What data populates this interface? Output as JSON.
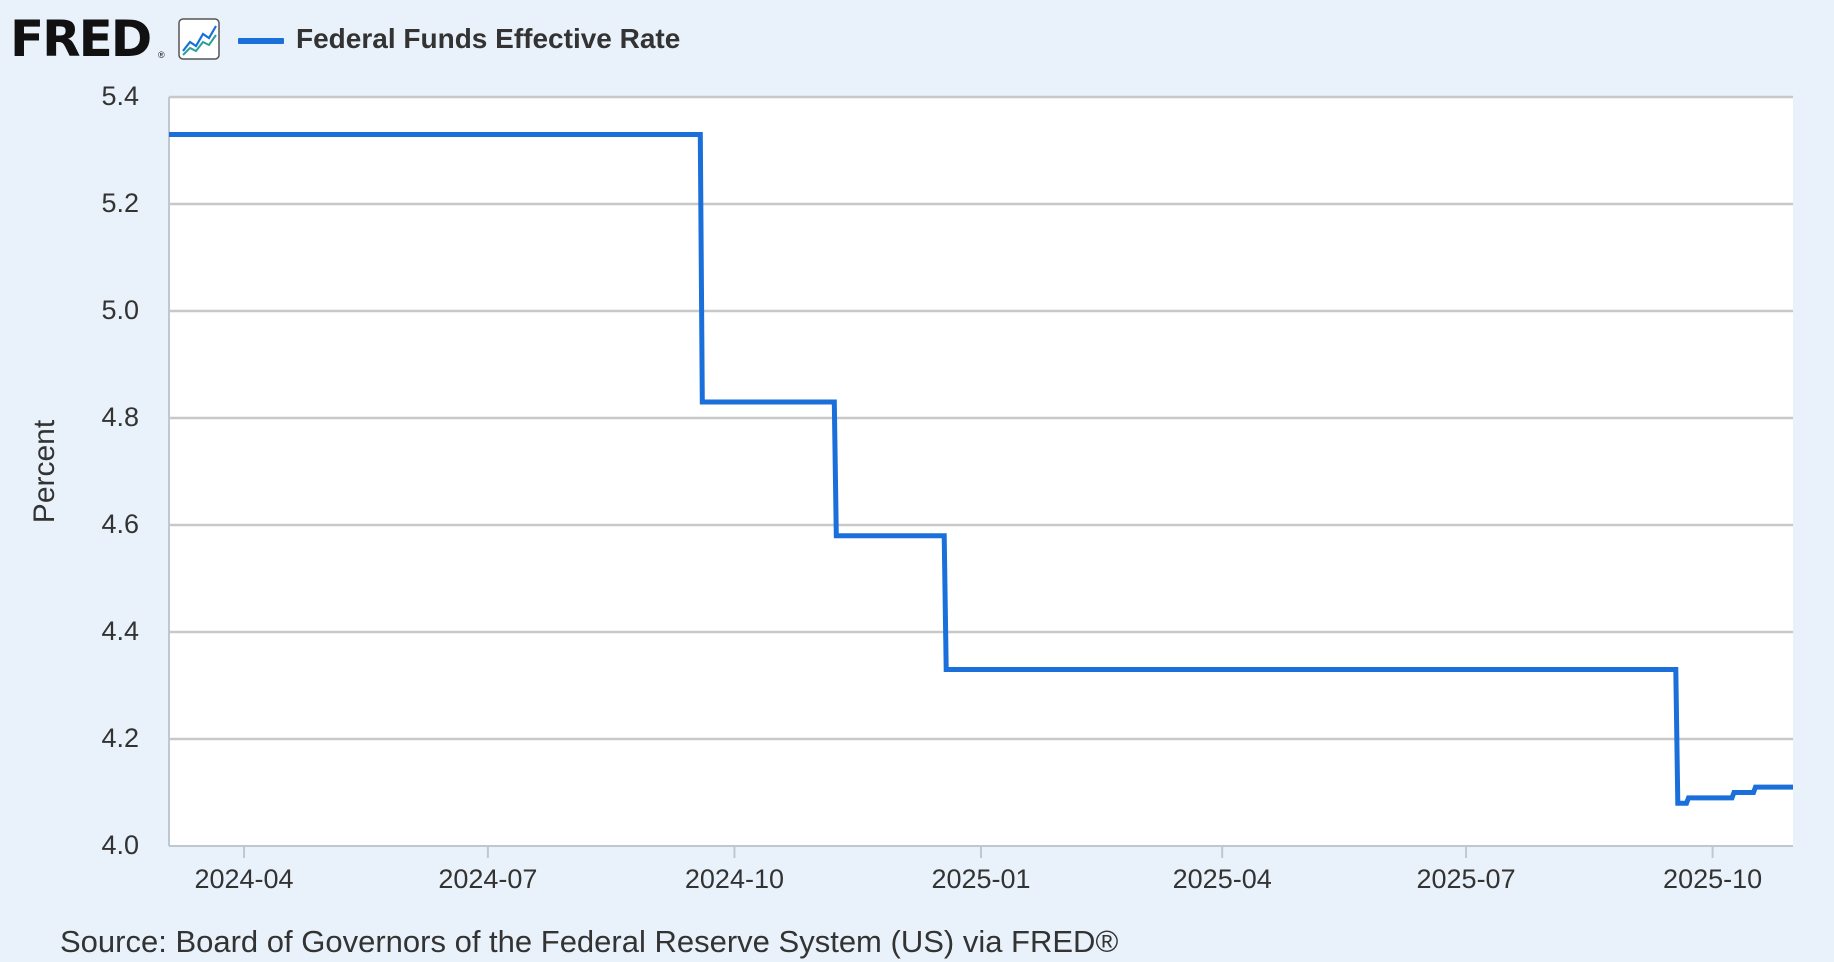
{
  "header": {
    "logo_text": "FRED",
    "logo_mark": "®",
    "icon": "line-graph-icon"
  },
  "source": "Source: Board of Governors of the Federal Reserve System (US) via FRED®",
  "colors": {
    "background": "#e9f2fa",
    "plot_background": "#ffffff",
    "series": "#1a6fdb",
    "grid": "#c8c8c8",
    "text": "#333333"
  },
  "chart_data": {
    "type": "line",
    "step": true,
    "title": "",
    "xlabel": "",
    "ylabel": "Percent",
    "x_type": "date",
    "xlim": [
      "2024-03-04",
      "2025-10-31"
    ],
    "ylim": [
      4.0,
      5.4
    ],
    "yticks": [
      {
        "value": 4.0,
        "label": "4.0"
      },
      {
        "value": 4.2,
        "label": "4.2"
      },
      {
        "value": 4.4,
        "label": "4.4"
      },
      {
        "value": 4.6,
        "label": "4.6"
      },
      {
        "value": 4.8,
        "label": "4.8"
      },
      {
        "value": 5.0,
        "label": "5.0"
      },
      {
        "value": 5.2,
        "label": "5.2"
      },
      {
        "value": 5.4,
        "label": "5.4"
      }
    ],
    "xticks": [
      {
        "value": "2024-04-01",
        "label": "2024-04"
      },
      {
        "value": "2024-07-01",
        "label": "2024-07"
      },
      {
        "value": "2024-10-01",
        "label": "2024-10"
      },
      {
        "value": "2025-01-01",
        "label": "2025-01"
      },
      {
        "value": "2025-04-01",
        "label": "2025-04"
      },
      {
        "value": "2025-07-01",
        "label": "2025-07"
      },
      {
        "value": "2025-10-01",
        "label": "2025-10"
      }
    ],
    "grid": true,
    "legend_position": "top-left",
    "series": [
      {
        "name": "Federal Funds Effective Rate",
        "color": "#1a6fdb",
        "points": [
          {
            "x": "2024-03-04",
            "y": 5.33
          },
          {
            "x": "2024-09-19",
            "y": 4.83
          },
          {
            "x": "2024-11-08",
            "y": 4.58
          },
          {
            "x": "2024-12-19",
            "y": 4.33
          },
          {
            "x": "2025-09-18",
            "y": 4.08
          },
          {
            "x": "2025-09-22",
            "y": 4.09
          },
          {
            "x": "2025-10-09",
            "y": 4.1
          },
          {
            "x": "2025-10-17",
            "y": 4.11
          },
          {
            "x": "2025-10-31",
            "y": 4.11
          }
        ]
      }
    ]
  }
}
